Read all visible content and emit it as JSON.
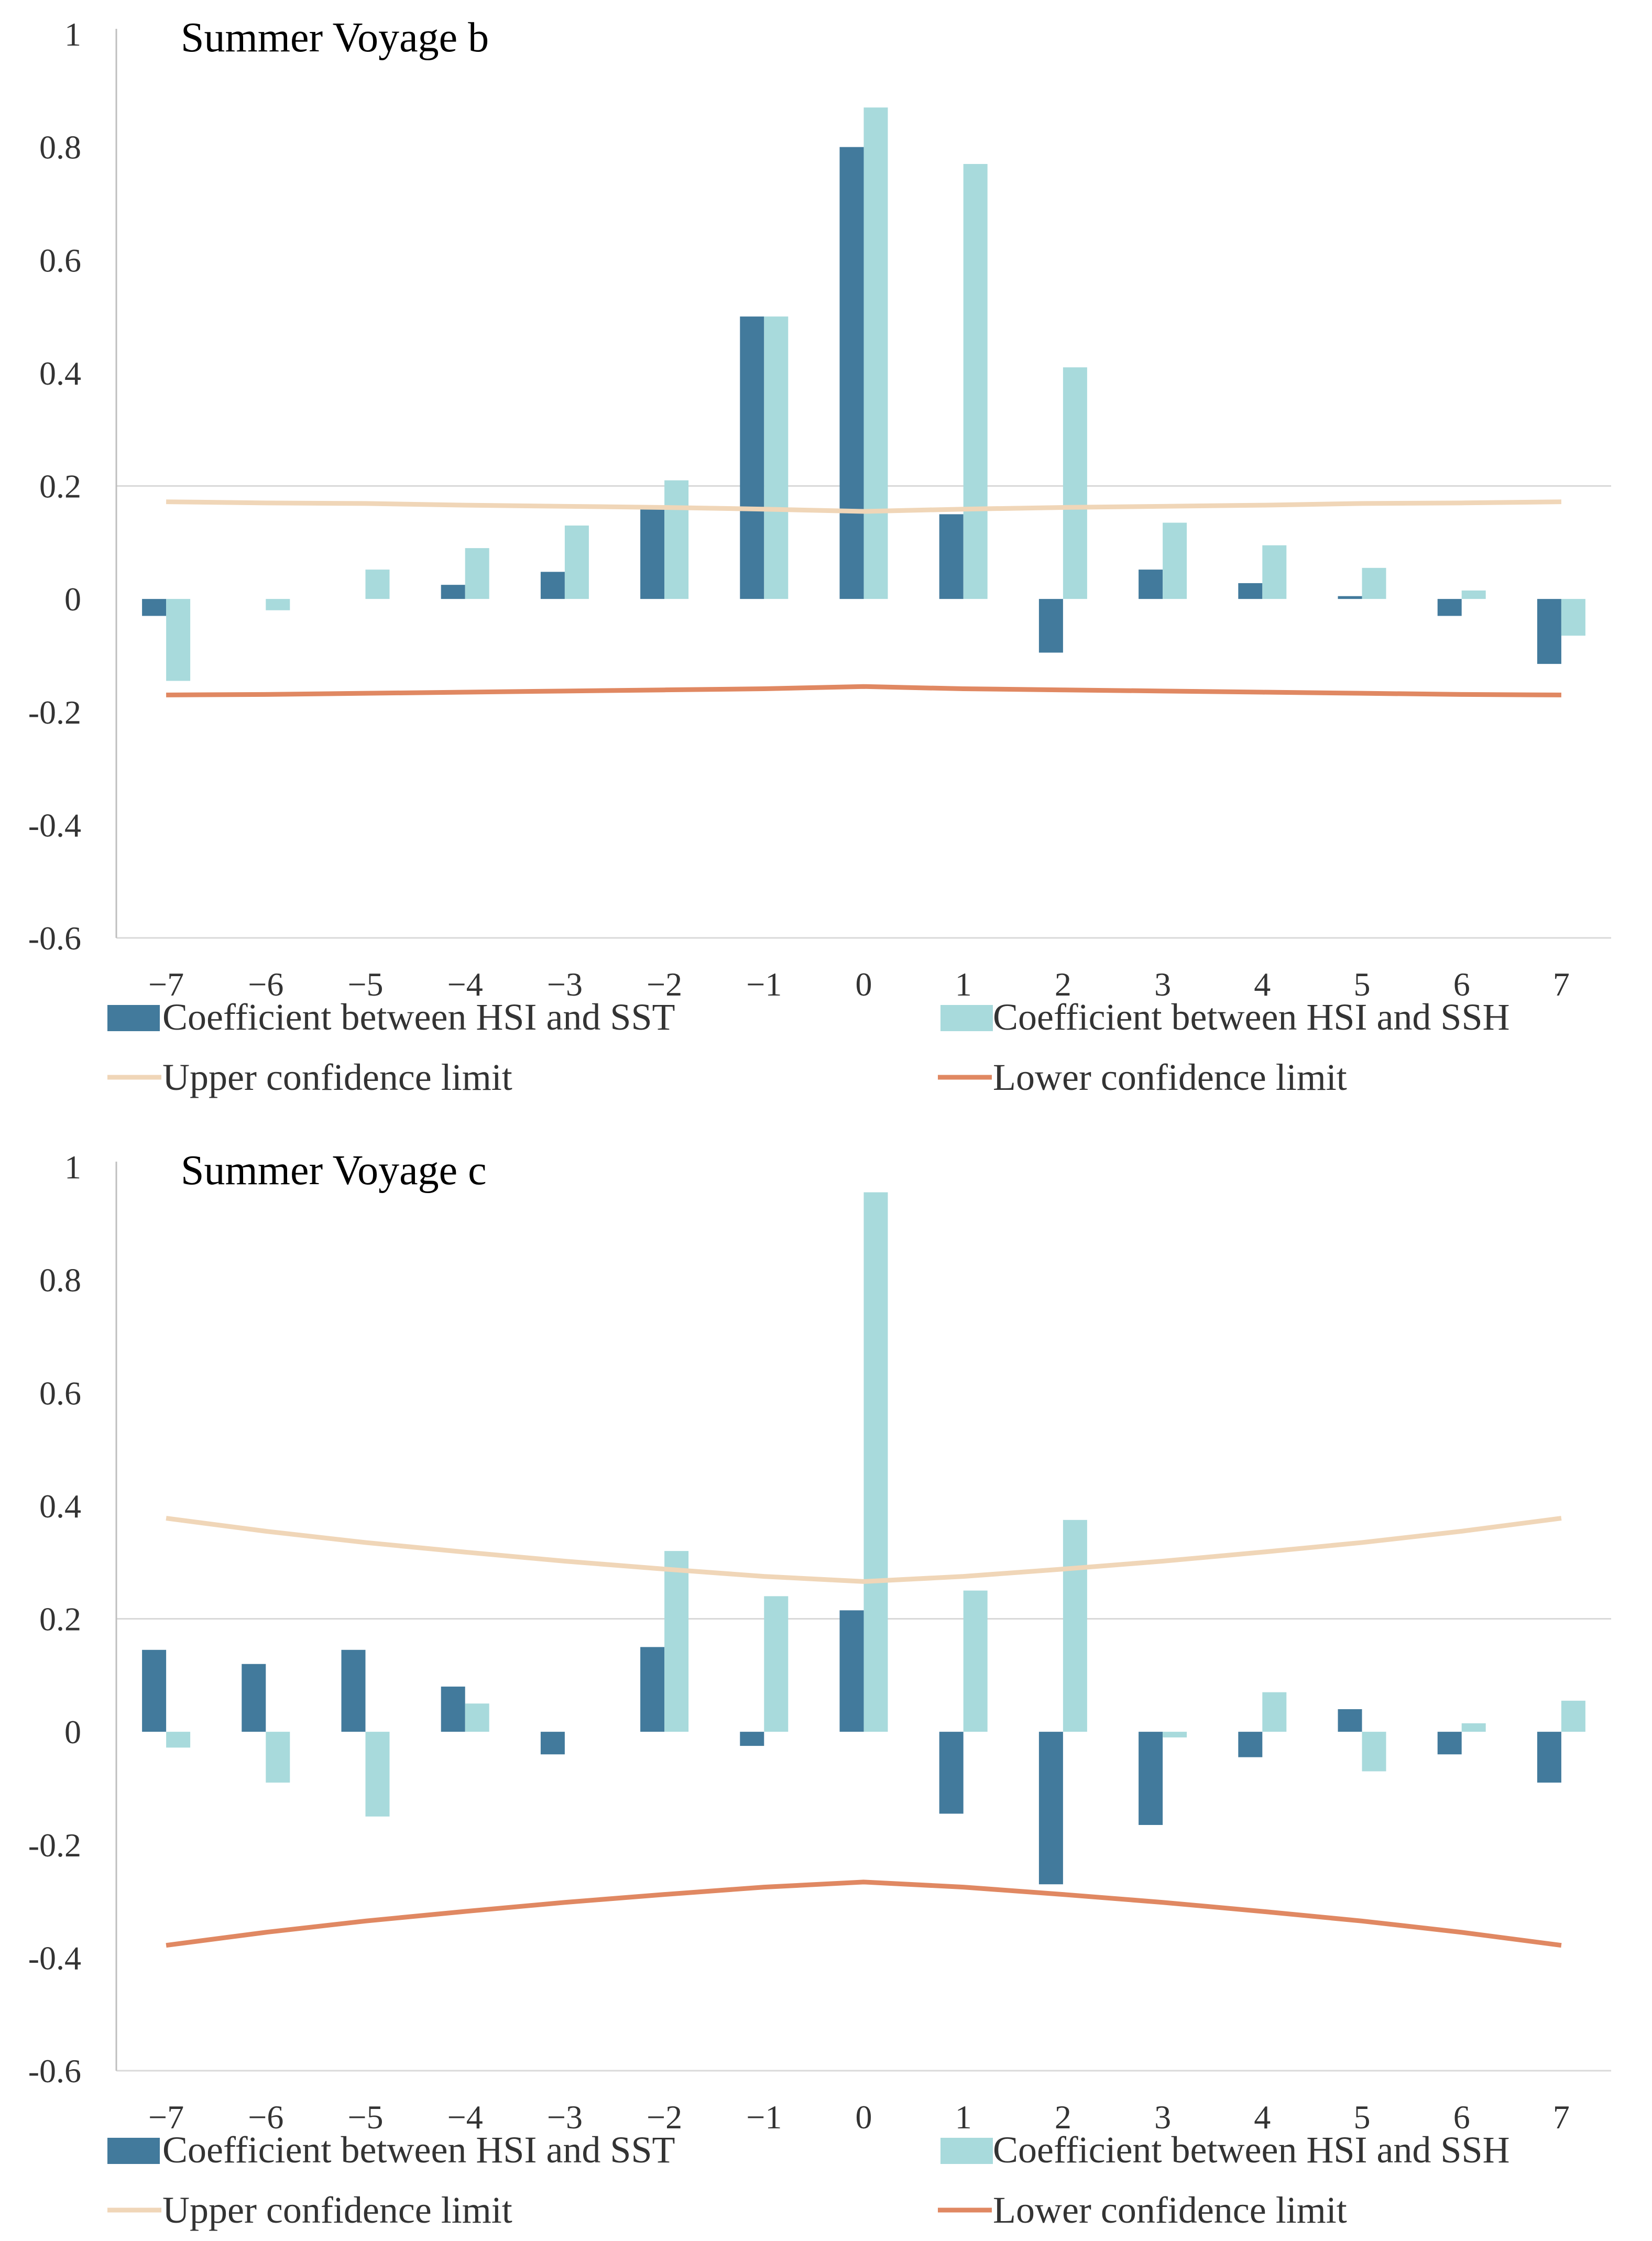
{
  "colors": {
    "sst": "#427a9c",
    "ssh": "#a8dadc",
    "upper": "#f0d6b8",
    "lower": "#e08862",
    "grid": "#d9d9d9",
    "axis": "#bfbfbf"
  },
  "chart_data": [
    {
      "type": "bar",
      "title": "Summer Voyage b",
      "categories": [
        "−7",
        "−6",
        "−5",
        "−4",
        "−3",
        "−2",
        "−1",
        "0",
        "1",
        "2",
        "3",
        "4",
        "5",
        "6",
        "7"
      ],
      "ylim": [
        -0.6,
        1
      ],
      "yticks": [
        "1",
        "0.8",
        "0.6",
        "0.4",
        "0.2",
        "0",
        "-0.2",
        "-0.4",
        "-0.6"
      ],
      "series": [
        {
          "name": "Coefficient between HSI and SST",
          "type": "bar",
          "values": [
            -0.03,
            0.0,
            0.0,
            0.025,
            0.048,
            0.16,
            0.5,
            0.8,
            0.15,
            -0.095,
            0.052,
            0.028,
            0.005,
            -0.03,
            -0.115
          ]
        },
        {
          "name": "Coefficient between HSI and SSH",
          "type": "bar",
          "values": [
            -0.145,
            -0.02,
            0.052,
            0.09,
            0.13,
            0.21,
            0.5,
            0.87,
            0.77,
            0.41,
            0.135,
            0.095,
            0.055,
            0.015,
            -0.065
          ]
        },
        {
          "name": "Upper confidence limit",
          "type": "line",
          "values": [
            0.172,
            0.17,
            0.169,
            0.166,
            0.164,
            0.162,
            0.159,
            0.155,
            0.159,
            0.162,
            0.164,
            0.166,
            0.169,
            0.17,
            0.172
          ]
        },
        {
          "name": "Lower confidence limit",
          "type": "line",
          "values": [
            -0.17,
            -0.169,
            -0.167,
            -0.165,
            -0.163,
            -0.161,
            -0.159,
            -0.155,
            -0.159,
            -0.161,
            -0.163,
            -0.165,
            -0.167,
            -0.169,
            -0.17
          ]
        }
      ]
    },
    {
      "type": "bar",
      "title": "Summer Voyage c",
      "categories": [
        "−7",
        "−6",
        "−5",
        "−4",
        "−3",
        "−2",
        "−1",
        "0",
        "1",
        "2",
        "3",
        "4",
        "5",
        "6",
        "7"
      ],
      "ylim": [
        -0.6,
        1
      ],
      "yticks": [
        "1",
        "0.8",
        "0.6",
        "0.4",
        "0.2",
        "0",
        "-0.2",
        "-0.4",
        "-0.6"
      ],
      "series": [
        {
          "name": "Coefficient between HSI and SST",
          "type": "bar",
          "values": [
            0.145,
            0.12,
            0.145,
            0.08,
            -0.04,
            0.15,
            -0.025,
            0.215,
            -0.145,
            -0.27,
            -0.165,
            -0.045,
            0.04,
            -0.04,
            -0.09
          ]
        },
        {
          "name": "Coefficient between HSI and SSH",
          "type": "bar",
          "values": [
            -0.028,
            -0.09,
            -0.15,
            0.05,
            0.0,
            0.32,
            0.24,
            0.955,
            0.25,
            0.375,
            -0.01,
            0.07,
            -0.07,
            0.015,
            0.055
          ]
        },
        {
          "name": "Upper confidence limit",
          "type": "line",
          "values": [
            0.378,
            0.355,
            0.335,
            0.318,
            0.302,
            0.288,
            0.275,
            0.266,
            0.275,
            0.288,
            0.302,
            0.318,
            0.335,
            0.355,
            0.378
          ]
        },
        {
          "name": "Lower confidence limit",
          "type": "line",
          "values": [
            -0.378,
            -0.355,
            -0.335,
            -0.318,
            -0.302,
            -0.288,
            -0.275,
            -0.266,
            -0.275,
            -0.288,
            -0.302,
            -0.318,
            -0.335,
            -0.355,
            -0.378
          ]
        }
      ]
    }
  ]
}
